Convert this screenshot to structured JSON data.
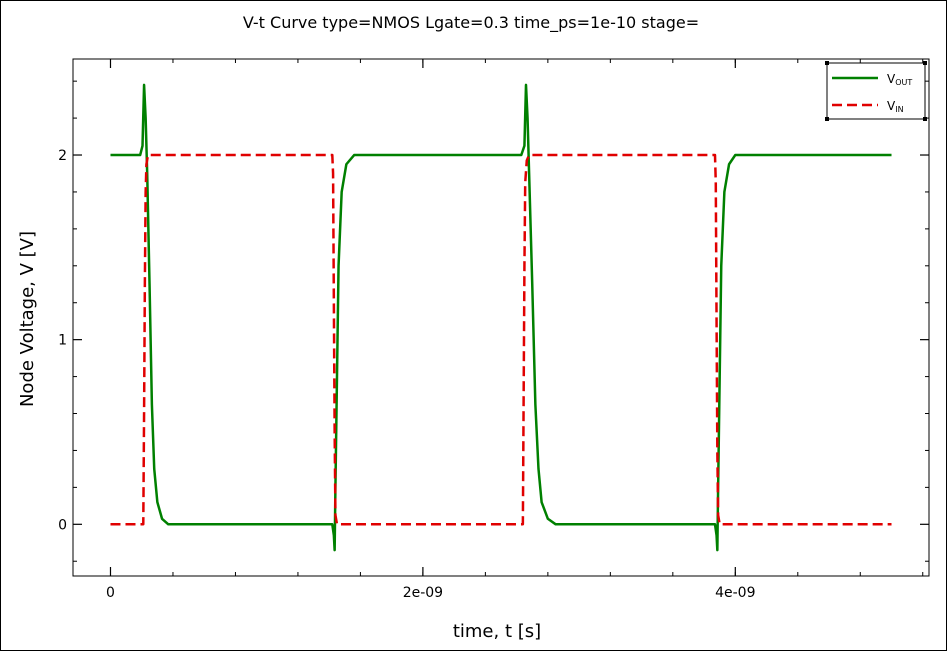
{
  "chart_data": {
    "type": "line",
    "title": "V-t Curve type=NMOS Lgate=0.3 time_ps=1e-10 stage=",
    "xlabel": "time, t [s]",
    "ylabel": "Node Voltage, V [V]",
    "xlim": [
      -2.4e-10,
      5.24e-09
    ],
    "ylim": [
      -0.28,
      2.52
    ],
    "x_ticks": [
      {
        "value": 0,
        "label": "0"
      },
      {
        "value": 2e-09,
        "label": "2e-09"
      },
      {
        "value": 4e-09,
        "label": "4e-09"
      }
    ],
    "y_ticks": [
      {
        "value": 0,
        "label": "0"
      },
      {
        "value": 1,
        "label": "1"
      },
      {
        "value": 2,
        "label": "2"
      }
    ],
    "grid": false,
    "legend": {
      "placement": "top-right",
      "entries": [
        {
          "main": "V",
          "sub": "OUT",
          "series": "vout"
        },
        {
          "main": "V",
          "sub": "IN",
          "series": "vin"
        }
      ]
    },
    "series": [
      {
        "key": "vout",
        "label_main": "V",
        "label_sub": "OUT",
        "color": "#008000",
        "dash": "solid",
        "points": [
          [
            0.0,
            2.0
          ],
          [
            1.9e-10,
            2.0
          ],
          [
            2.05e-10,
            2.05
          ],
          [
            2.15e-10,
            2.38
          ],
          [
            2.25e-10,
            2.2
          ],
          [
            2.35e-10,
            1.9
          ],
          [
            2.5e-10,
            1.3
          ],
          [
            2.65e-10,
            0.65
          ],
          [
            2.8e-10,
            0.3
          ],
          [
            3e-10,
            0.12
          ],
          [
            3.3e-10,
            0.03
          ],
          [
            3.7e-10,
            0.0
          ],
          [
            1.42e-09,
            0.0
          ],
          [
            1.43e-09,
            -0.06
          ],
          [
            1.435e-09,
            -0.14
          ],
          [
            1.44e-09,
            0.2
          ],
          [
            1.45e-09,
            0.8
          ],
          [
            1.46e-09,
            1.4
          ],
          [
            1.48e-09,
            1.8
          ],
          [
            1.51e-09,
            1.95
          ],
          [
            1.56e-09,
            2.0
          ],
          [
            2.63e-09,
            2.0
          ],
          [
            2.65e-09,
            2.05
          ],
          [
            2.66e-09,
            2.38
          ],
          [
            2.67e-09,
            2.2
          ],
          [
            2.68e-09,
            1.9
          ],
          [
            2.7e-09,
            1.3
          ],
          [
            2.72e-09,
            0.65
          ],
          [
            2.74e-09,
            0.3
          ],
          [
            2.76e-09,
            0.12
          ],
          [
            2.8e-09,
            0.03
          ],
          [
            2.85e-09,
            0.0
          ],
          [
            3.87e-09,
            0.0
          ],
          [
            3.88e-09,
            -0.06
          ],
          [
            3.885e-09,
            -0.14
          ],
          [
            3.89e-09,
            0.2
          ],
          [
            3.9e-09,
            0.8
          ],
          [
            3.91e-09,
            1.4
          ],
          [
            3.93e-09,
            1.8
          ],
          [
            3.96e-09,
            1.95
          ],
          [
            4e-09,
            2.0
          ],
          [
            5e-09,
            2.0
          ]
        ]
      },
      {
        "key": "vin",
        "label_main": "V",
        "label_sub": "IN",
        "color": "#e00000",
        "dash": "dashed",
        "points": [
          [
            0.0,
            0.0
          ],
          [
            2.1e-10,
            0.0
          ],
          [
            2.15e-10,
            0.6
          ],
          [
            2.2e-10,
            1.3
          ],
          [
            2.25e-10,
            1.8
          ],
          [
            2.3e-10,
            1.95
          ],
          [
            2.4e-10,
            2.0
          ],
          [
            1.42e-09,
            2.0
          ],
          [
            1.425e-09,
            1.9
          ],
          [
            1.43e-09,
            1.2
          ],
          [
            1.435e-09,
            0.5
          ],
          [
            1.44e-09,
            0.05
          ],
          [
            1.45e-09,
            0.0
          ],
          [
            2.64e-09,
            0.0
          ],
          [
            2.645e-09,
            0.7
          ],
          [
            2.65e-09,
            1.4
          ],
          [
            2.655e-09,
            1.85
          ],
          [
            2.665e-09,
            1.97
          ],
          [
            2.68e-09,
            2.0
          ],
          [
            3.87e-09,
            2.0
          ],
          [
            3.875e-09,
            1.85
          ],
          [
            3.88e-09,
            1.1
          ],
          [
            3.885e-09,
            0.4
          ],
          [
            3.89e-09,
            0.05
          ],
          [
            3.9e-09,
            0.0
          ],
          [
            5e-09,
            0.0
          ]
        ]
      }
    ]
  }
}
